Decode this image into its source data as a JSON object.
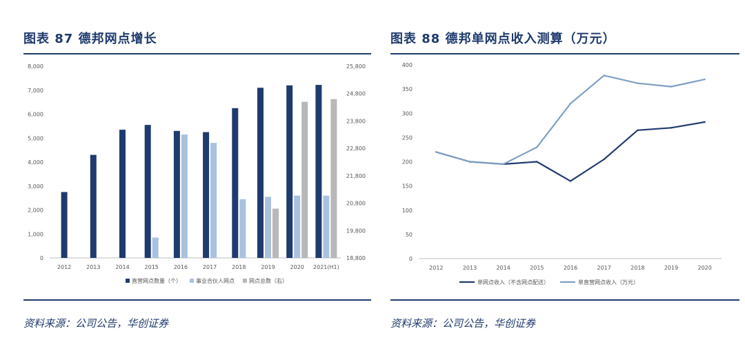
{
  "charts": [
    {
      "title": "图表 87   德邦网点增长",
      "source": "资料来源：公司公告，华创证券",
      "chart_data": {
        "type": "bar",
        "categories": [
          "2012",
          "2013",
          "2014",
          "2015",
          "2016",
          "2017",
          "2018",
          "2019",
          "2020",
          "2021(H1)"
        ],
        "left_axis": {
          "ylim": [
            0,
            8000
          ],
          "ticks": [
            "0",
            "1,000",
            "2,000",
            "3,000",
            "4,000",
            "5,000",
            "6,000",
            "7,000",
            "8,000"
          ]
        },
        "right_axis": {
          "ylim": [
            18800,
            25800
          ],
          "ticks": [
            "18,800",
            "19,800",
            "20,800",
            "21,800",
            "22,800",
            "23,800",
            "24,800",
            "25,800"
          ]
        },
        "series": [
          {
            "name": "直营网点数量（个）",
            "axis": "left",
            "color": "#1f3a6e",
            "values": [
              2750,
              4300,
              5350,
              5550,
              5300,
              5250,
              6250,
              7100,
              7200,
              7220
            ]
          },
          {
            "name": "事业合伙人网点",
            "axis": "left",
            "color": "#a9c1df",
            "values": [
              null,
              null,
              null,
              850,
              5150,
              4800,
              2450,
              2550,
              2600,
              2600
            ]
          },
          {
            "name": "网点总数（右）",
            "axis": "right",
            "color": "#b8b8b8",
            "values": [
              null,
              null,
              null,
              null,
              null,
              null,
              null,
              20600,
              24500,
              24600
            ]
          }
        ]
      }
    },
    {
      "title": "图表 88   德邦单网点收入测算（万元）",
      "source": "资料来源：公司公告，华创证券",
      "chart_data": {
        "type": "line",
        "categories": [
          "2012",
          "2013",
          "2014",
          "2015",
          "2016",
          "2017",
          "2018",
          "2019",
          "2020"
        ],
        "ylim": [
          0,
          400
        ],
        "ticks": [
          "0",
          "50",
          "100",
          "150",
          "200",
          "250",
          "300",
          "350",
          "400"
        ],
        "series": [
          {
            "name": "单网点收入（不含网点配送）",
            "color": "#1f3a6e",
            "values": [
              220,
              200,
              195,
              200,
              160,
              205,
              265,
              270,
              282
            ]
          },
          {
            "name": "单直营网点收入（万元）",
            "color": "#7f9fc2",
            "values": [
              220,
              200,
              195,
              230,
              320,
              378,
              362,
              355,
              370
            ]
          }
        ]
      }
    }
  ]
}
